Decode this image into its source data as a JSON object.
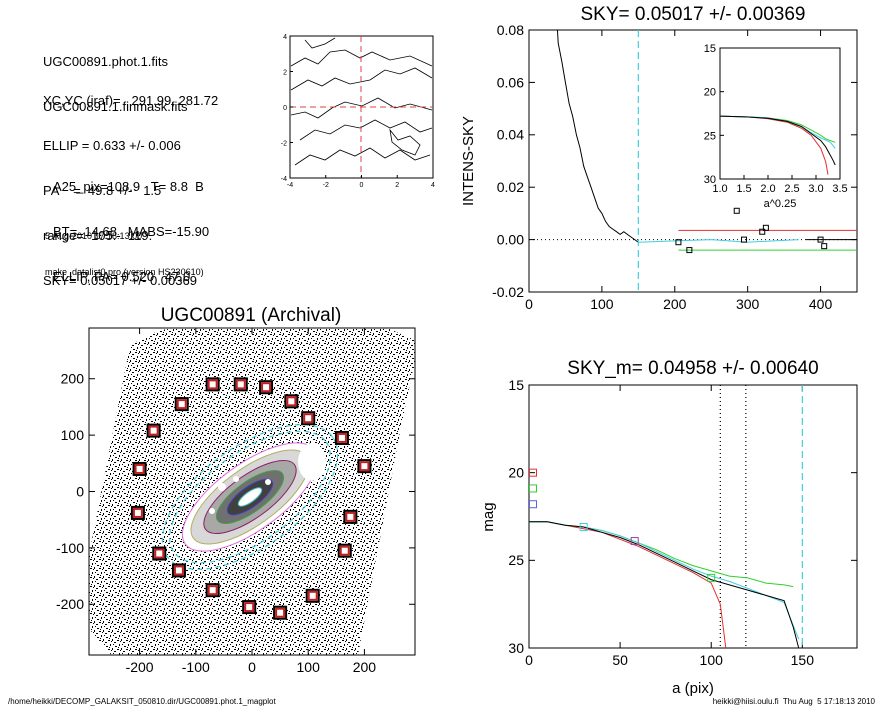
{
  "info": {
    "lines_top": [
      "UGC00891.phot.1.fits",
      "UGC00891.1.finmask.fits"
    ],
    "lines_mid": [
      "XC,YC (iraf)=   291.99, 281.72",
      "ELLIP = 0.633 +/- 0.006",
      "PA    =  49.8 +/-   1.5",
      "range=  105.-  119.",
      "SKY= 0.05017 +/- 0.00369"
    ],
    "lines_low": [
      "A25_pix=108.9   T= 8.8  B",
      "BT=  14.68   MABS=-15.90",
      "ELLIP, PA= 0.520   47.0"
    ],
    "date": "5-Aug-2010 17:18:13.00",
    "prog": "make_datalist0.pro (version HS230610)"
  },
  "footer": {
    "left": "/home/heikki/DECOMP_GALAKSIT_050810.dir/UGC00891.phot.1_magplot",
    "right": "heikki@hiisi.oulu.fi  Thu Aug  5 17:18:13 2010"
  },
  "chart_data": [
    {
      "id": "contour",
      "type": "contour",
      "xlim": [
        -4,
        4
      ],
      "ylim": [
        -4,
        4
      ],
      "xticks": [
        "-4",
        "-2",
        "0",
        "2",
        "4"
      ],
      "yticks": [
        "-4",
        "-2",
        "0",
        "2",
        "4"
      ],
      "crosshair": {
        "x": 0,
        "y": 0,
        "color": "#e04040"
      }
    },
    {
      "id": "sky",
      "type": "line",
      "title": "SKY= 0.05017 +/- 0.00369",
      "ylabel": "INTENS-SKY",
      "xlim": [
        0,
        450
      ],
      "ylim": [
        -0.02,
        0.08
      ],
      "xticks": [
        {
          "v": 0,
          "t": "0"
        },
        {
          "v": 100,
          "t": "100"
        },
        {
          "v": 200,
          "t": "200"
        },
        {
          "v": 300,
          "t": "300"
        },
        {
          "v": 400,
          "t": "400"
        }
      ],
      "yticks": [
        {
          "v": -0.02,
          "t": "-0.02"
        },
        {
          "v": 0,
          "t": "0.00"
        },
        {
          "v": 0.02,
          "t": "0.02"
        },
        {
          "v": 0.04,
          "t": "0.04"
        },
        {
          "v": 0.06,
          "t": "0.06"
        },
        {
          "v": 0.08,
          "t": "0.08"
        }
      ],
      "profile": [
        [
          38,
          0.085
        ],
        [
          40,
          0.075
        ],
        [
          45,
          0.068
        ],
        [
          50,
          0.06
        ],
        [
          55,
          0.052
        ],
        [
          60,
          0.047
        ],
        [
          65,
          0.04
        ],
        [
          70,
          0.035
        ],
        [
          75,
          0.028
        ],
        [
          80,
          0.024
        ],
        [
          85,
          0.02
        ],
        [
          90,
          0.016
        ],
        [
          95,
          0.012
        ],
        [
          100,
          0.01
        ],
        [
          105,
          0.007
        ],
        [
          110,
          0.005
        ],
        [
          115,
          0.004
        ],
        [
          120,
          0.003
        ],
        [
          125,
          0.002
        ],
        [
          130,
          0.003
        ],
        [
          135,
          0.002
        ],
        [
          140,
          0.001
        ],
        [
          145,
          0.0
        ],
        [
          150,
          -0.001
        ]
      ],
      "sky_line": [
        [
          150,
          -0.001
        ],
        [
          200,
          -0.0005
        ],
        [
          250,
          0.0
        ],
        [
          300,
          -0.001
        ],
        [
          370,
          0.0
        ]
      ],
      "hlines": [
        {
          "y": 0.0035,
          "x0": 205,
          "x1": 450,
          "color": "#e03030"
        },
        {
          "y": -0.004,
          "x0": 205,
          "x1": 450,
          "color": "#30d030"
        },
        {
          "y": 0.0,
          "x0": 380,
          "x1": 450,
          "color": "#000000"
        }
      ],
      "vline": {
        "x": 150,
        "color": "#40d0e0"
      },
      "points": [
        [
          205,
          -0.001
        ],
        [
          220,
          -0.004
        ],
        [
          285,
          0.011
        ],
        [
          295,
          0.0
        ],
        [
          320,
          0.003
        ],
        [
          325,
          0.0045
        ],
        [
          400,
          0.0
        ],
        [
          405,
          -0.0025
        ]
      ]
    },
    {
      "id": "inset",
      "type": "line",
      "xlabel": "a^0.25",
      "xlim": [
        1.0,
        3.5
      ],
      "ylim": [
        15,
        30
      ],
      "yreversed": true,
      "xticks": [
        {
          "v": 1.0,
          "t": "1.0"
        },
        {
          "v": 1.5,
          "t": "1.5"
        },
        {
          "v": 2.0,
          "t": "2.0"
        },
        {
          "v": 2.5,
          "t": "2.5"
        },
        {
          "v": 3.0,
          "t": "3.0"
        },
        {
          "v": 3.5,
          "t": "3.5"
        }
      ],
      "yticks": [
        {
          "v": 15,
          "t": "15"
        },
        {
          "v": 20,
          "t": "20"
        },
        {
          "v": 25,
          "t": "25"
        },
        {
          "v": 30,
          "t": "30"
        }
      ],
      "series": [
        {
          "color": "#e03030",
          "points": [
            [
              1.0,
              22.8
            ],
            [
              1.6,
              22.9
            ],
            [
              2.0,
              23.1
            ],
            [
              2.4,
              23.5
            ],
            [
              2.7,
              24.2
            ],
            [
              2.9,
              25.0
            ],
            [
              3.1,
              26.5
            ],
            [
              3.2,
              28.0
            ],
            [
              3.25,
              29.5
            ]
          ]
        },
        {
          "color": "#30d030",
          "points": [
            [
              1.0,
              22.8
            ],
            [
              1.6,
              22.9
            ],
            [
              2.0,
              23.0
            ],
            [
              2.4,
              23.3
            ],
            [
              2.7,
              23.8
            ],
            [
              2.9,
              24.4
            ],
            [
              3.1,
              25.0
            ],
            [
              3.2,
              25.4
            ],
            [
              3.4,
              25.8
            ]
          ]
        },
        {
          "color": "#40d0e0",
          "points": [
            [
              1.0,
              22.8
            ],
            [
              1.6,
              22.9
            ],
            [
              2.0,
              23.0
            ],
            [
              2.4,
              23.4
            ],
            [
              2.7,
              24.0
            ],
            [
              2.9,
              24.7
            ],
            [
              3.1,
              25.3
            ],
            [
              3.3,
              25.8
            ],
            [
              3.4,
              26.5
            ]
          ]
        },
        {
          "color": "#000000",
          "points": [
            [
              1.0,
              22.8
            ],
            [
              1.6,
              22.9
            ],
            [
              2.0,
              23.05
            ],
            [
              2.4,
              23.4
            ],
            [
              2.7,
              24.0
            ],
            [
              2.9,
              24.8
            ],
            [
              3.1,
              25.6
            ],
            [
              3.2,
              26.3
            ],
            [
              3.35,
              27.8
            ],
            [
              3.4,
              28.4
            ]
          ]
        }
      ]
    },
    {
      "id": "galaxy",
      "type": "image",
      "title": "UGC00891 (Archival)",
      "xlim": [
        -290,
        290
      ],
      "ylim": [
        -290,
        290
      ],
      "xticks": [
        {
          "v": -200,
          "t": "-200"
        },
        {
          "v": -100,
          "t": "-100"
        },
        {
          "v": 0,
          "t": "0"
        },
        {
          "v": 100,
          "t": "100"
        },
        {
          "v": 200,
          "t": "200"
        }
      ],
      "yticks": [
        {
          "v": -200,
          "t": "-200"
        },
        {
          "v": -100,
          "t": "-100"
        },
        {
          "v": 0,
          "t": "0"
        },
        {
          "v": 100,
          "t": "100"
        },
        {
          "v": 200,
          "t": "200"
        }
      ],
      "markers": [
        [
          -200,
          40
        ],
        [
          -203,
          -38
        ],
        [
          -175,
          108
        ],
        [
          -165,
          -110
        ],
        [
          -125,
          155
        ],
        [
          -130,
          -140
        ],
        [
          -70,
          190
        ],
        [
          -70,
          -175
        ],
        [
          -20,
          190
        ],
        [
          -5,
          -205
        ],
        [
          25,
          185
        ],
        [
          50,
          -215
        ],
        [
          70,
          160
        ],
        [
          108,
          -185
        ],
        [
          100,
          130
        ],
        [
          160,
          95
        ],
        [
          165,
          -105
        ],
        [
          175,
          -45
        ],
        [
          200,
          45
        ]
      ]
    },
    {
      "id": "mag",
      "type": "line",
      "title": "SKY_m=  0.04958 +/- 0.00640",
      "xlabel": "a (pix)",
      "ylabel": "mag",
      "xlim": [
        0,
        180
      ],
      "ylim": [
        15,
        30
      ],
      "yreversed": true,
      "xticks": [
        {
          "v": 0,
          "t": "0"
        },
        {
          "v": 50,
          "t": "50"
        },
        {
          "v": 100,
          "t": "100"
        },
        {
          "v": 150,
          "t": "150"
        }
      ],
      "yticks": [
        {
          "v": 15,
          "t": "15"
        },
        {
          "v": 20,
          "t": "20"
        },
        {
          "v": 25,
          "t": "25"
        },
        {
          "v": 30,
          "t": "30"
        }
      ],
      "vlines": [
        {
          "x": 105,
          "color": "#000000"
        },
        {
          "x": 119,
          "color": "#000000"
        },
        {
          "x": 150,
          "color": "#40d0e0"
        }
      ],
      "series": [
        {
          "color": "#e03030",
          "points": [
            [
              0,
              22.8
            ],
            [
              10,
              22.8
            ],
            [
              20,
              23.0
            ],
            [
              30,
              23.2
            ],
            [
              40,
              23.4
            ],
            [
              50,
              23.8
            ],
            [
              60,
              24.2
            ],
            [
              70,
              24.7
            ],
            [
              80,
              25.2
            ],
            [
              90,
              25.7
            ],
            [
              100,
              26.3
            ],
            [
              105,
              27.5
            ],
            [
              108,
              30.0
            ]
          ]
        },
        {
          "color": "#30d030",
          "points": [
            [
              0,
              22.8
            ],
            [
              10,
              22.8
            ],
            [
              20,
              23.0
            ],
            [
              30,
              23.1
            ],
            [
              40,
              23.3
            ],
            [
              50,
              23.6
            ],
            [
              60,
              24.0
            ],
            [
              70,
              24.4
            ],
            [
              80,
              24.9
            ],
            [
              90,
              25.3
            ],
            [
              100,
              25.6
            ],
            [
              110,
              25.9
            ],
            [
              120,
              26.0
            ],
            [
              130,
              26.3
            ],
            [
              140,
              26.4
            ],
            [
              145,
              26.5
            ]
          ]
        },
        {
          "color": "#40d0e0",
          "points": [
            [
              0,
              22.8
            ],
            [
              10,
              22.8
            ],
            [
              20,
              23.0
            ],
            [
              30,
              23.1
            ],
            [
              40,
              23.3
            ],
            [
              50,
              23.6
            ],
            [
              60,
              24.0
            ],
            [
              70,
              24.5
            ],
            [
              80,
              25.0
            ],
            [
              90,
              25.5
            ],
            [
              100,
              25.9
            ],
            [
              110,
              26.2
            ],
            [
              120,
              26.6
            ],
            [
              130,
              27.0
            ],
            [
              140,
              27.4
            ],
            [
              148,
              29.5
            ]
          ]
        },
        {
          "color": "#000000",
          "points": [
            [
              0,
              22.8
            ],
            [
              10,
              22.8
            ],
            [
              20,
              23.0
            ],
            [
              30,
              23.1
            ],
            [
              40,
              23.4
            ],
            [
              50,
              23.7
            ],
            [
              60,
              24.1
            ],
            [
              70,
              24.6
            ],
            [
              80,
              25.1
            ],
            [
              90,
              25.6
            ],
            [
              100,
              26.1
            ],
            [
              110,
              26.4
            ],
            [
              120,
              26.7
            ],
            [
              130,
              27.0
            ],
            [
              140,
              27.3
            ],
            [
              145,
              28.8
            ],
            [
              148,
              30.0
            ]
          ]
        }
      ],
      "points": [
        {
          "x": 0,
          "y": 20.0,
          "color": "#e03030"
        },
        {
          "x": 0,
          "y": 20.9,
          "color": "#30d030"
        },
        {
          "x": 0,
          "y": 21.8,
          "color": "#6060e0"
        },
        {
          "x": 30,
          "y": 23.1,
          "color": "#40d0e0"
        },
        {
          "x": 58,
          "y": 23.9,
          "color": "#a040a0"
        },
        {
          "x": 100,
          "y": 26.0,
          "color": "#30d030"
        }
      ]
    }
  ]
}
